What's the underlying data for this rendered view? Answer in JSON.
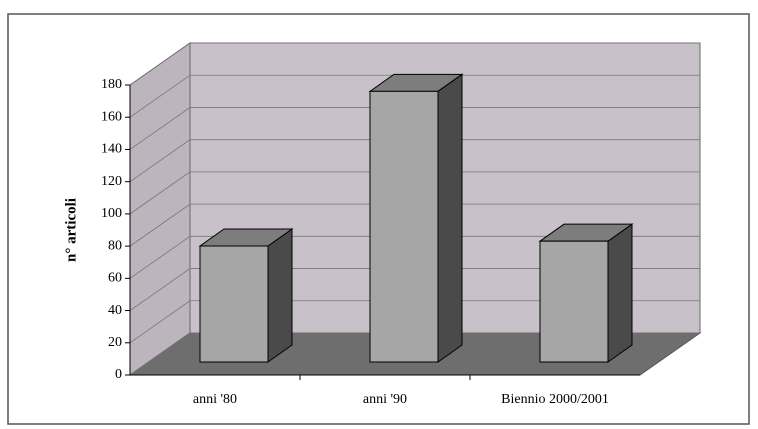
{
  "chart_data": {
    "type": "bar3d",
    "y_label": "n° articoli",
    "categories": [
      "anni '80",
      "anni '90",
      "Biennio 2000/2001"
    ],
    "values": [
      72,
      168,
      75
    ],
    "color": "#a6a6a6",
    "ylim": [
      0,
      180
    ],
    "yticks": [
      0,
      20,
      40,
      60,
      80,
      100,
      120,
      140,
      160,
      180
    ],
    "grid": true
  }
}
